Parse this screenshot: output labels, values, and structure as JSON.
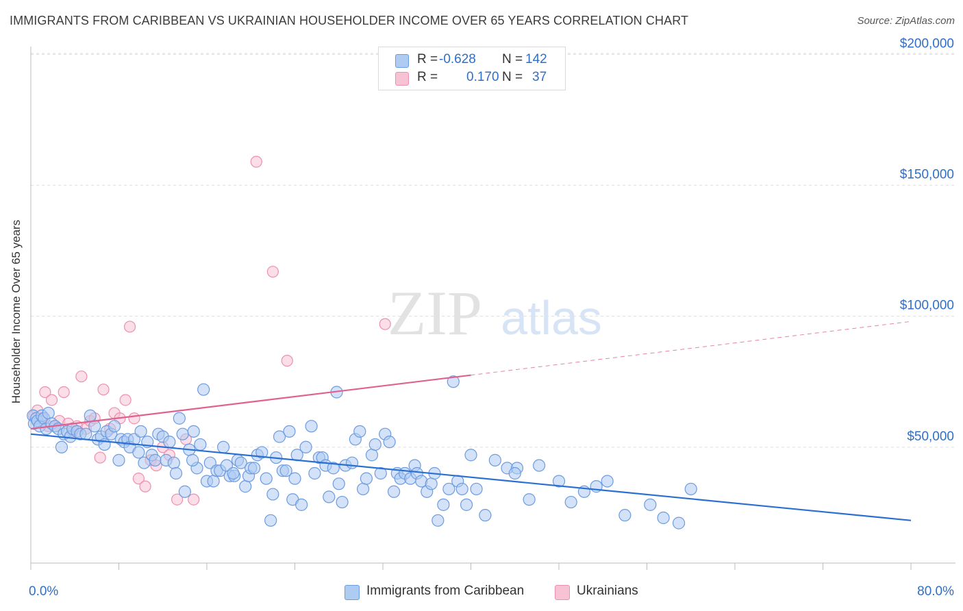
{
  "header": {
    "title": "IMMIGRANTS FROM CARIBBEAN VS UKRAINIAN HOUSEHOLDER INCOME OVER 65 YEARS CORRELATION CHART",
    "source": "Source: ZipAtlas.com"
  },
  "legend": {
    "r_label": "R =",
    "n_label": "N =",
    "series": [
      {
        "r": "-0.628",
        "n": "142"
      },
      {
        "r": "0.170",
        "n": "37"
      }
    ],
    "bottom": [
      {
        "label": "Immigrants from Caribbean"
      },
      {
        "label": "Ukrainians"
      }
    ]
  },
  "watermark": {
    "zip": "ZIP",
    "atlas": "atlas"
  },
  "colors": {
    "blue_fill": "#aecbf2",
    "blue_stroke": "#6b9be0",
    "blue_line": "#2a6fd1",
    "pink_fill": "#f7c3d4",
    "pink_stroke": "#ec8fb0",
    "pink_line": "#e0618f",
    "axis_label": "#2d6fc9",
    "grid": "#dddddd"
  },
  "chart_data": {
    "type": "scatter",
    "title": "IMMIGRANTS FROM CARIBBEAN VS UKRAINIAN HOUSEHOLDER INCOME OVER 65 YEARS CORRELATION CHART",
    "xlabel": "",
    "ylabel": "Householder Income Over 65 years",
    "xlim": [
      0,
      80
    ],
    "ylim": [
      0,
      210000
    ],
    "x_tick_labels": [
      {
        "value": 0,
        "label": "0.0%"
      },
      {
        "value": 80,
        "label": "80.0%"
      }
    ],
    "y_ticks": [
      {
        "value": 50000,
        "label": "$50,000"
      },
      {
        "value": 100000,
        "label": "$100,000"
      },
      {
        "value": 150000,
        "label": "$150,000"
      },
      {
        "value": 200000,
        "label": "$200,000"
      }
    ],
    "grid": true,
    "legend_position": "top-center",
    "series": [
      {
        "name": "Immigrants from Caribbean",
        "color": "#aecbf2",
        "trend": {
          "x": [
            0,
            80
          ],
          "y": [
            55000,
            22000
          ],
          "dashed_from": null
        },
        "points": [
          [
            0.2,
            62000
          ],
          [
            0.3,
            59000
          ],
          [
            0.5,
            61000
          ],
          [
            0.6,
            60000
          ],
          [
            0.8,
            58000
          ],
          [
            1.0,
            62000
          ],
          [
            1.2,
            61000
          ],
          [
            1.4,
            57000
          ],
          [
            1.6,
            63000
          ],
          [
            1.9,
            59000
          ],
          [
            2.2,
            58000
          ],
          [
            2.5,
            57000
          ],
          [
            2.8,
            50000
          ],
          [
            3.0,
            55000
          ],
          [
            3.3,
            56000
          ],
          [
            3.6,
            54000
          ],
          [
            3.8,
            57000
          ],
          [
            4.2,
            56000
          ],
          [
            4.5,
            55000
          ],
          [
            5.0,
            55000
          ],
          [
            5.4,
            62000
          ],
          [
            5.8,
            58000
          ],
          [
            6.1,
            53000
          ],
          [
            6.4,
            54000
          ],
          [
            6.7,
            51000
          ],
          [
            6.9,
            56000
          ],
          [
            7.3,
            55000
          ],
          [
            7.6,
            58000
          ],
          [
            8.0,
            45000
          ],
          [
            8.2,
            53000
          ],
          [
            8.5,
            52000
          ],
          [
            8.8,
            53000
          ],
          [
            9.0,
            50000
          ],
          [
            9.4,
            53000
          ],
          [
            9.8,
            48000
          ],
          [
            10.0,
            56000
          ],
          [
            10.3,
            44000
          ],
          [
            10.6,
            52000
          ],
          [
            11.0,
            47000
          ],
          [
            11.3,
            45000
          ],
          [
            11.6,
            55000
          ],
          [
            12.0,
            54000
          ],
          [
            12.3,
            45000
          ],
          [
            12.6,
            52000
          ],
          [
            13.0,
            44000
          ],
          [
            13.2,
            40000
          ],
          [
            13.5,
            61000
          ],
          [
            13.8,
            55000
          ],
          [
            14.0,
            33000
          ],
          [
            14.4,
            49000
          ],
          [
            14.8,
            56000
          ],
          [
            15.1,
            42000
          ],
          [
            15.4,
            51000
          ],
          [
            15.7,
            72000
          ],
          [
            16.0,
            37000
          ],
          [
            16.3,
            44000
          ],
          [
            16.6,
            37000
          ],
          [
            16.9,
            41000
          ],
          [
            17.2,
            41000
          ],
          [
            17.5,
            50000
          ],
          [
            17.8,
            43000
          ],
          [
            18.1,
            39000
          ],
          [
            18.5,
            39000
          ],
          [
            18.8,
            45000
          ],
          [
            19.1,
            44000
          ],
          [
            19.5,
            35000
          ],
          [
            19.8,
            39000
          ],
          [
            20.0,
            42000
          ],
          [
            20.3,
            42000
          ],
          [
            20.6,
            47000
          ],
          [
            21.0,
            48000
          ],
          [
            21.4,
            38000
          ],
          [
            21.8,
            22000
          ],
          [
            22.0,
            32000
          ],
          [
            22.3,
            46000
          ],
          [
            22.6,
            54000
          ],
          [
            22.9,
            41000
          ],
          [
            23.2,
            41000
          ],
          [
            23.5,
            56000
          ],
          [
            23.8,
            30000
          ],
          [
            24.2,
            47000
          ],
          [
            24.6,
            28000
          ],
          [
            25.0,
            50000
          ],
          [
            25.5,
            58000
          ],
          [
            25.8,
            40000
          ],
          [
            26.2,
            46000
          ],
          [
            26.5,
            46000
          ],
          [
            26.8,
            43000
          ],
          [
            27.1,
            31000
          ],
          [
            27.5,
            42000
          ],
          [
            27.8,
            71000
          ],
          [
            28.0,
            36000
          ],
          [
            28.3,
            29000
          ],
          [
            28.6,
            43000
          ],
          [
            29.2,
            44000
          ],
          [
            29.5,
            53000
          ],
          [
            29.9,
            56000
          ],
          [
            30.2,
            34000
          ],
          [
            30.5,
            38000
          ],
          [
            31.0,
            47000
          ],
          [
            31.3,
            51000
          ],
          [
            31.8,
            40000
          ],
          [
            32.2,
            55000
          ],
          [
            32.6,
            52000
          ],
          [
            33.0,
            33000
          ],
          [
            33.3,
            40000
          ],
          [
            33.6,
            38000
          ],
          [
            34.0,
            40000
          ],
          [
            34.5,
            38000
          ],
          [
            34.9,
            43000
          ],
          [
            35.1,
            40000
          ],
          [
            35.5,
            37000
          ],
          [
            36.0,
            33000
          ],
          [
            36.4,
            36000
          ],
          [
            37.0,
            22000
          ],
          [
            37.5,
            28000
          ],
          [
            38.0,
            34000
          ],
          [
            38.4,
            75000
          ],
          [
            38.8,
            37000
          ],
          [
            39.2,
            34000
          ],
          [
            39.6,
            28000
          ],
          [
            40.5,
            34000
          ],
          [
            41.3,
            24000
          ],
          [
            42.2,
            45000
          ],
          [
            43.3,
            42000
          ],
          [
            44.2,
            42000
          ],
          [
            45.3,
            30000
          ],
          [
            46.2,
            43000
          ],
          [
            48.0,
            37000
          ],
          [
            49.1,
            29000
          ],
          [
            50.3,
            33000
          ],
          [
            51.4,
            35000
          ],
          [
            52.4,
            37000
          ],
          [
            54.0,
            24000
          ],
          [
            56.3,
            28000
          ],
          [
            57.5,
            23000
          ],
          [
            58.9,
            21000
          ],
          [
            60.0,
            34000
          ],
          [
            44.0,
            40000
          ],
          [
            40.0,
            47000
          ],
          [
            36.7,
            40000
          ],
          [
            24.0,
            38000
          ],
          [
            18.4,
            40000
          ],
          [
            14.7,
            45000
          ]
        ]
      },
      {
        "name": "Ukrainians",
        "color": "#f7c3d4",
        "trend": {
          "x": [
            0,
            80
          ],
          "y": [
            57000,
            98000
          ],
          "dashed_from": 40
        },
        "points": [
          [
            0.3,
            62000
          ],
          [
            0.6,
            64000
          ],
          [
            1.0,
            61000
          ],
          [
            1.3,
            71000
          ],
          [
            1.6,
            58000
          ],
          [
            1.9,
            68000
          ],
          [
            2.2,
            58000
          ],
          [
            2.6,
            60000
          ],
          [
            3.0,
            71000
          ],
          [
            3.4,
            59000
          ],
          [
            3.8,
            56000
          ],
          [
            4.2,
            58000
          ],
          [
            4.6,
            77000
          ],
          [
            5.0,
            57000
          ],
          [
            5.4,
            60000
          ],
          [
            5.8,
            61000
          ],
          [
            6.3,
            46000
          ],
          [
            6.6,
            72000
          ],
          [
            7.2,
            57000
          ],
          [
            7.6,
            63000
          ],
          [
            8.1,
            61000
          ],
          [
            8.6,
            68000
          ],
          [
            9.0,
            96000
          ],
          [
            9.4,
            61000
          ],
          [
            9.8,
            38000
          ],
          [
            10.4,
            35000
          ],
          [
            10.9,
            45000
          ],
          [
            11.4,
            43000
          ],
          [
            12.0,
            50000
          ],
          [
            12.6,
            47000
          ],
          [
            13.3,
            30000
          ],
          [
            14.1,
            53000
          ],
          [
            14.8,
            30000
          ],
          [
            20.5,
            159000
          ],
          [
            22.0,
            117000
          ],
          [
            23.3,
            83000
          ],
          [
            32.2,
            97000
          ]
        ]
      }
    ]
  }
}
